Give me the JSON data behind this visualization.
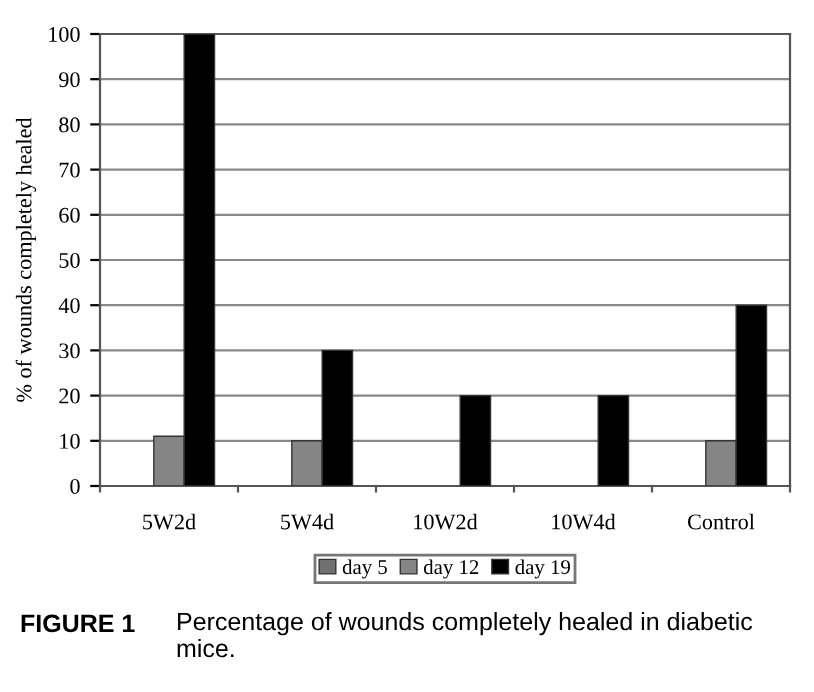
{
  "chart_data": {
    "type": "bar",
    "ylabel": "% of wounds completely healed",
    "categories": [
      "5W2d",
      "5W4d",
      "10W2d",
      "10W4d",
      "Control"
    ],
    "series": [
      {
        "name": "day 5",
        "color": "#707070",
        "values": [
          0,
          0,
          0,
          0,
          0
        ]
      },
      {
        "name": "day 12",
        "color": "#858585",
        "values": [
          11,
          10,
          0,
          0,
          10
        ]
      },
      {
        "name": "day 19",
        "color": "#000000",
        "values": [
          100,
          30,
          20,
          20,
          40
        ]
      }
    ],
    "ylim": [
      0,
      100
    ],
    "yticks": [
      0,
      10,
      20,
      30,
      40,
      50,
      60,
      70,
      80,
      90,
      100
    ],
    "grid": "y",
    "legend": "bottom",
    "annotations": [
      "FIGURE 1",
      "Percentage of wounds completely healed in diabetic mice."
    ]
  }
}
